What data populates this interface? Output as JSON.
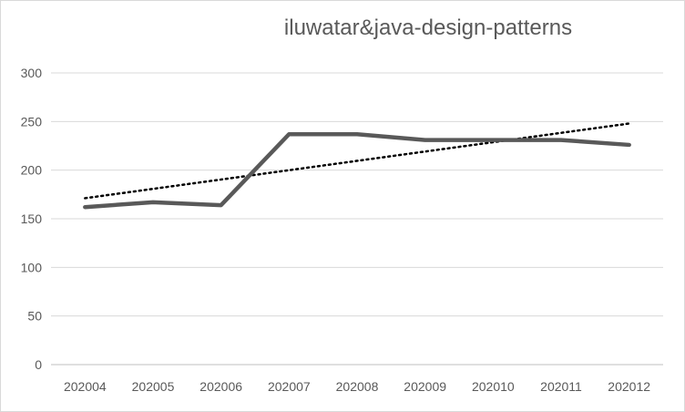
{
  "chart_data": {
    "type": "line",
    "title": "iluwatar&java-design-patterns",
    "xlabel": "",
    "ylabel": "",
    "categories": [
      "202004",
      "202005",
      "202006",
      "202007",
      "202008",
      "202009",
      "202010",
      "202011",
      "202012"
    ],
    "series": [
      {
        "values": [
          162,
          167,
          164,
          237,
          237,
          231,
          231,
          231,
          226
        ],
        "color": "#595959"
      }
    ],
    "trendline": {
      "type": "linear",
      "style": "dotted",
      "color": "#000000"
    },
    "ylim": [
      0,
      300
    ],
    "yticks": [
      0,
      50,
      100,
      150,
      200,
      250,
      300
    ],
    "grid": true,
    "legend": "none"
  }
}
